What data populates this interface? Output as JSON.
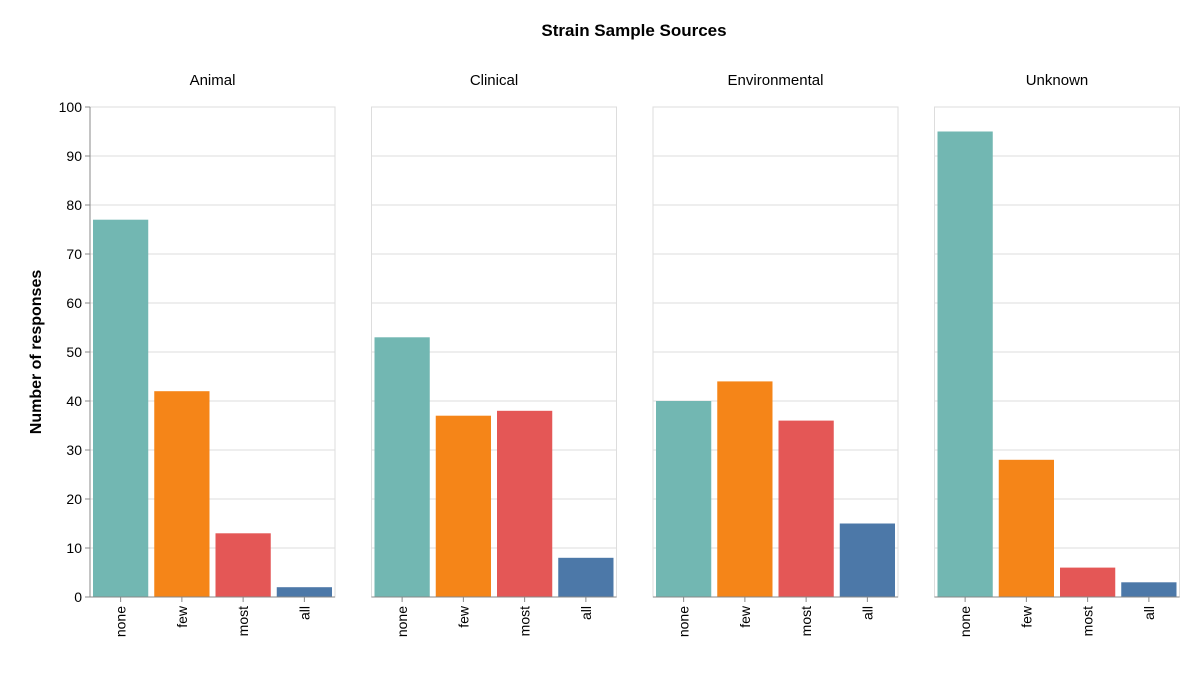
{
  "chart_data": {
    "type": "bar",
    "title": "Strain Sample Sources",
    "ylabel": "Number of responses",
    "xlabel": "",
    "ylim": [
      0,
      100
    ],
    "yticks": [
      0,
      10,
      20,
      30,
      40,
      50,
      60,
      70,
      80,
      90,
      100
    ],
    "grid": true,
    "categories": [
      "none",
      "few",
      "most",
      "all"
    ],
    "colors": {
      "none": "#72b7b2",
      "few": "#f58518",
      "most": "#e45756",
      "all": "#4c78a8"
    },
    "facets": [
      {
        "name": "Animal",
        "values": [
          77,
          42,
          13,
          2
        ]
      },
      {
        "name": "Clinical",
        "values": [
          53,
          37,
          38,
          8
        ]
      },
      {
        "name": "Environmental",
        "values": [
          40,
          44,
          36,
          15
        ]
      },
      {
        "name": "Unknown",
        "values": [
          95,
          28,
          6,
          3
        ]
      }
    ]
  }
}
